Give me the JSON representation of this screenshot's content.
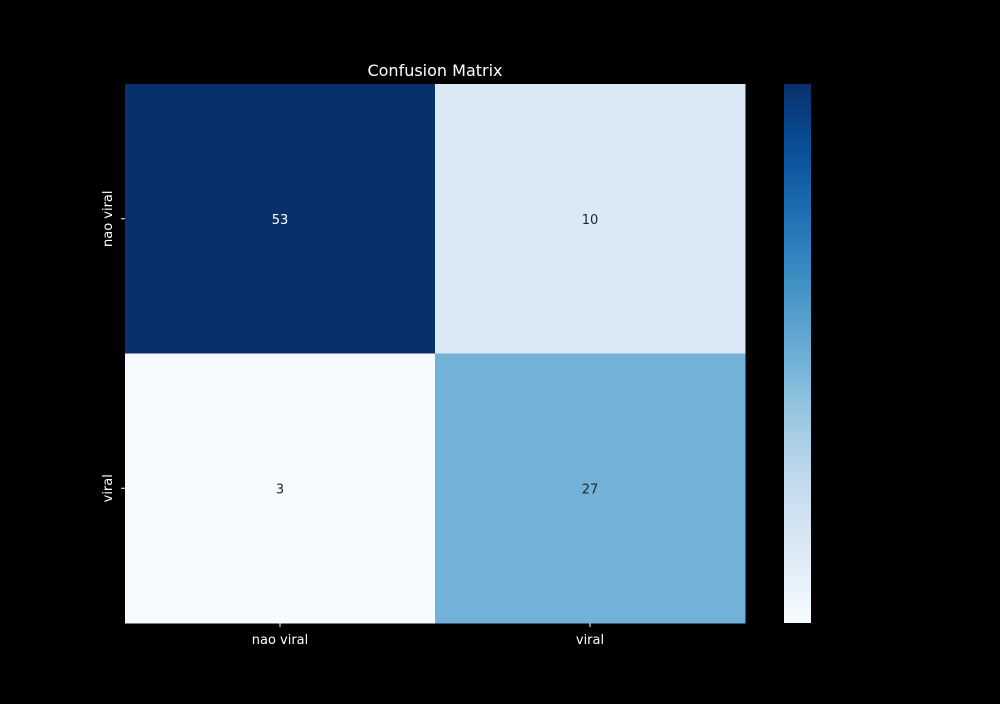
{
  "chart_data": {
    "type": "heatmap",
    "title": "Confusion Matrix",
    "xlabel": "",
    "ylabel": "",
    "x_categories": [
      "nao viral",
      "viral"
    ],
    "y_categories": [
      "nao viral",
      "viral"
    ],
    "values": [
      [
        53,
        10
      ],
      [
        3,
        27
      ]
    ],
    "colormap": "Blues",
    "value_range": [
      3,
      53
    ],
    "colorbar": true,
    "colorbar_ticks": false,
    "grid": false,
    "colors": {
      "background": "#000000",
      "text": "#ffffff",
      "cell_text_dark": "#262626",
      "cell_text_light": "#ffffff"
    }
  }
}
